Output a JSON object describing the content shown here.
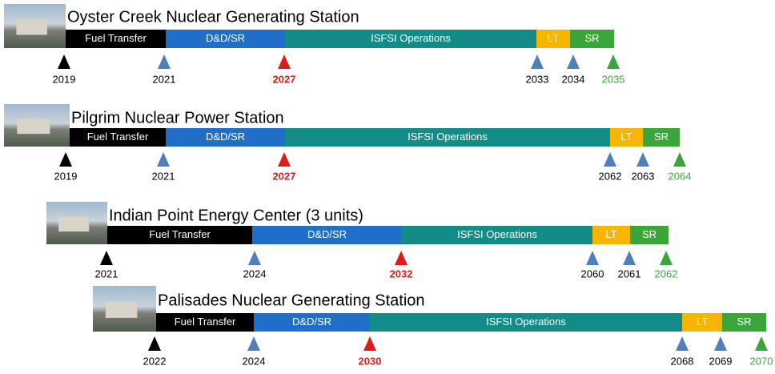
{
  "stations": [
    {
      "title": "Oyster Creek Nuclear Generating Station",
      "phases": [
        "Fuel Transfer",
        "D&D/SR",
        "ISFSI Operations",
        "LT",
        "SR"
      ],
      "milestones": [
        2019,
        2021,
        2027,
        2033,
        2034,
        2035
      ]
    },
    {
      "title": "Pilgrim Nuclear Power Station",
      "phases": [
        "Fuel Transfer",
        "D&D/SR",
        "ISFSI Operations",
        "LT",
        "SR"
      ],
      "milestones": [
        2019,
        2021,
        2027,
        2062,
        2063,
        2064
      ]
    },
    {
      "title": "Indian Point Energy Center (3 units)",
      "phases": [
        "Fuel Transfer",
        "D&D/SR",
        "ISFSI Operations",
        "LT",
        "SR"
      ],
      "milestones": [
        2021,
        2024,
        2032,
        2060,
        2061,
        2062
      ]
    },
    {
      "title": "Palisades Nuclear Generating Station",
      "phases": [
        "Fuel Transfer",
        "D&D/SR",
        "ISFSI Operations",
        "LT",
        "SR"
      ],
      "milestones": [
        2022,
        2024,
        2030,
        2068,
        2069,
        2070
      ]
    }
  ]
}
